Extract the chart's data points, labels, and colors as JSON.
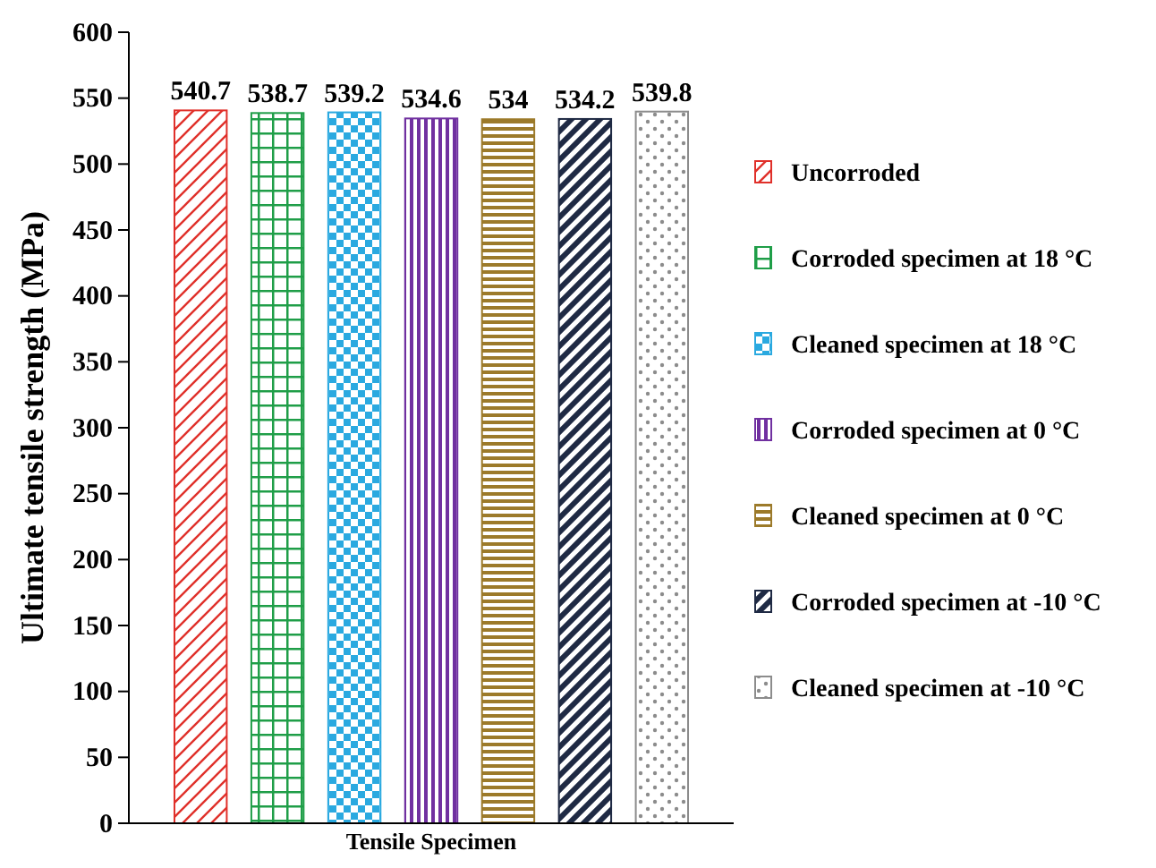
{
  "chart_data": {
    "type": "bar",
    "ylabel": "Ultimate tensile strength (MPa)",
    "categories": [
      "Tensile Specimen"
    ],
    "series": [
      {
        "name": "Uncorroded",
        "color": "#e0302a",
        "values": [
          540.7
        ]
      },
      {
        "name": "Corroded specimen at 18 °C",
        "color": "#1f9e48",
        "values": [
          538.7
        ]
      },
      {
        "name": "Cleaned specimen at  18 °C",
        "color": "#2aa9e0",
        "values": [
          539.2
        ]
      },
      {
        "name": "Corroded specimen at 0 °C",
        "color": "#7030a0",
        "values": [
          534.6
        ]
      },
      {
        "name": "Cleaned specimen at 0 °C",
        "color": "#9c7a2a",
        "values": [
          534
        ]
      },
      {
        "name": "Corroded specimen at -10 °C",
        "color": "#1f2a44",
        "values": [
          534.2
        ]
      },
      {
        "name": "Cleaned specimen at -10 °C",
        "color": "#8c8c8c",
        "values": [
          539.8
        ]
      }
    ],
    "ylim": [
      0,
      600
    ],
    "yticks": [
      0,
      50,
      100,
      150,
      200,
      250,
      300,
      350,
      400,
      450,
      500,
      550,
      600
    ],
    "data_labels": true,
    "legend": "right",
    "grid": false
  }
}
